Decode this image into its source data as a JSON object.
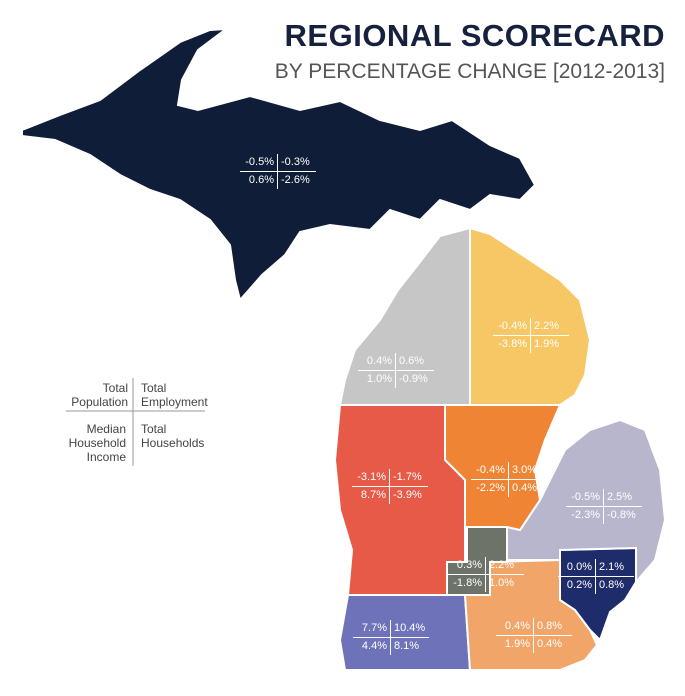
{
  "header": {
    "title": "REGIONAL SCORECARD",
    "subtitle": "BY PERCENTAGE CHANGE [2012-2013]"
  },
  "legend": {
    "population": "Total Population",
    "employment": "Total Employment",
    "income": "Median Household Income",
    "households": "Total Households"
  },
  "regions": [
    {
      "color": "#0f1d38",
      "population": "-0.5%",
      "employment": "-0.3%",
      "income": "0.6%",
      "households": "-2.6%"
    },
    {
      "color": "#c6c6c6",
      "population": "0.4%",
      "employment": "0.6%",
      "income": "1.0%",
      "households": "-0.9%"
    },
    {
      "color": "#f6c764",
      "population": "-0.4%",
      "employment": "2.2%",
      "income": "-3.8%",
      "households": "1.9%"
    },
    {
      "color": "#e85a48",
      "population": "-3.1%",
      "employment": "-1.7%",
      "income": "8.7%",
      "households": "-3.9%"
    },
    {
      "color": "#ee8434",
      "population": "-0.4%",
      "employment": "3.0%",
      "income": "-2.2%",
      "households": "0.4%"
    },
    {
      "color": "#b8b6cc",
      "population": "-0.5%",
      "employment": "2.5%",
      "income": "-2.3%",
      "households": "-0.8%"
    },
    {
      "color": "#6d7368",
      "population": "0.3%",
      "employment": "2.2%",
      "income": "-1.8%",
      "households": "1.0%"
    },
    {
      "color": "#1f2c6b",
      "population": "0.0%",
      "employment": "2.1%",
      "income": "0.2%",
      "households": "0.8%"
    },
    {
      "color": "#f2a568",
      "population": "0.4%",
      "employment": "0.8%",
      "income": "1.9%",
      "households": "0.4%"
    },
    {
      "color": "#6e72b8",
      "population": "7.7%",
      "employment": "10.4%",
      "income": "4.4%",
      "households": "8.1%"
    }
  ]
}
